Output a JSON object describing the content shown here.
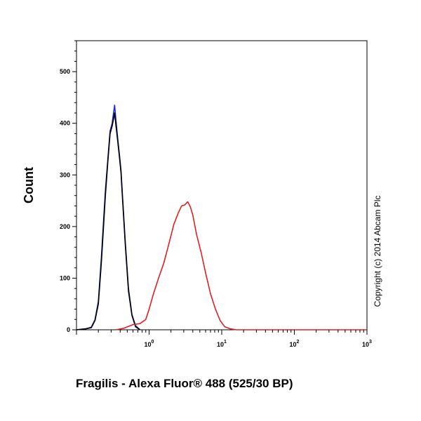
{
  "chart_data": {
    "type": "line",
    "title": "",
    "xlabel": "Fragilis - Alexa Fluor® 488 (525/30 BP)",
    "ylabel": "Count",
    "x_scale": "log",
    "xlim": [
      0.1,
      1000
    ],
    "ylim": [
      0,
      560
    ],
    "y_ticks": [
      0,
      100,
      200,
      300,
      400,
      500
    ],
    "x_ticks": [
      {
        "value": 1,
        "base": "10",
        "exp": "0"
      },
      {
        "value": 10,
        "base": "10",
        "exp": "1"
      },
      {
        "value": 100,
        "base": "10",
        "exp": "2"
      },
      {
        "value": 1000,
        "base": "10",
        "exp": "3"
      }
    ],
    "grid": false,
    "legend": "none",
    "series": [
      {
        "color": "#1a2bd4",
        "x": [
          0.1,
          0.135,
          0.16,
          0.18,
          0.2,
          0.22,
          0.25,
          0.27,
          0.29,
          0.31,
          0.32,
          0.335,
          0.35,
          0.37,
          0.39,
          0.41,
          0.43,
          0.47,
          0.52,
          0.58,
          0.65,
          0.75
        ],
        "y": [
          0,
          2,
          5,
          20,
          55,
          140,
          270,
          330,
          385,
          400,
          415,
          435,
          405,
          370,
          340,
          310,
          260,
          170,
          80,
          30,
          8,
          0
        ]
      },
      {
        "color": "#000000",
        "x": [
          0.1,
          0.135,
          0.16,
          0.18,
          0.2,
          0.22,
          0.25,
          0.27,
          0.29,
          0.31,
          0.32,
          0.335,
          0.35,
          0.37,
          0.39,
          0.41,
          0.43,
          0.47,
          0.52,
          0.58,
          0.65,
          0.75
        ],
        "y": [
          0,
          2,
          4,
          18,
          50,
          130,
          260,
          325,
          380,
          395,
          405,
          420,
          395,
          365,
          335,
          305,
          255,
          165,
          75,
          28,
          6,
          0
        ]
      },
      {
        "color": "#e02020",
        "x": [
          0.35,
          0.45,
          0.6,
          0.75,
          0.9,
          1.0,
          1.15,
          1.35,
          1.6,
          1.9,
          2.2,
          2.5,
          2.8,
          3.1,
          3.4,
          3.7,
          4.0,
          4.5,
          5.2,
          6.0,
          7.0,
          8.2,
          9.5,
          11.0,
          13.0,
          16.0,
          25.0,
          1000
        ],
        "y": [
          0,
          3,
          10,
          12,
          20,
          40,
          70,
          100,
          130,
          170,
          205,
          225,
          240,
          242,
          248,
          238,
          222,
          185,
          150,
          110,
          70,
          40,
          18,
          6,
          2,
          0,
          0,
          0
        ]
      }
    ]
  },
  "watermark": "Copyright (c) 2014 Abcam Plc"
}
